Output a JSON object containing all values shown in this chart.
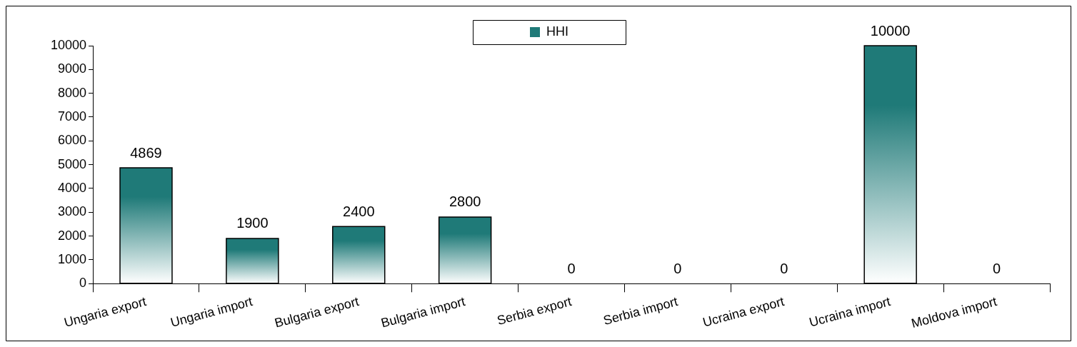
{
  "chart_data": {
    "type": "bar",
    "categories": [
      "Ungaria export",
      "Ungaria import",
      "Bulgaria export",
      "Bulgaria import",
      "Serbia export",
      "Serbia import",
      "Ucraina export",
      "Ucraina import",
      "Moldova import"
    ],
    "series": [
      {
        "name": "HHI",
        "color": "#1f7a78",
        "values": [
          4869,
          1900,
          2400,
          2800,
          0,
          0,
          0,
          10000,
          0
        ]
      }
    ],
    "ylim": [
      0,
      10000
    ],
    "yticks": [
      0,
      1000,
      2000,
      3000,
      4000,
      5000,
      6000,
      7000,
      8000,
      9000,
      10000
    ],
    "grid": false,
    "legend": "top",
    "data_labels": true
  }
}
